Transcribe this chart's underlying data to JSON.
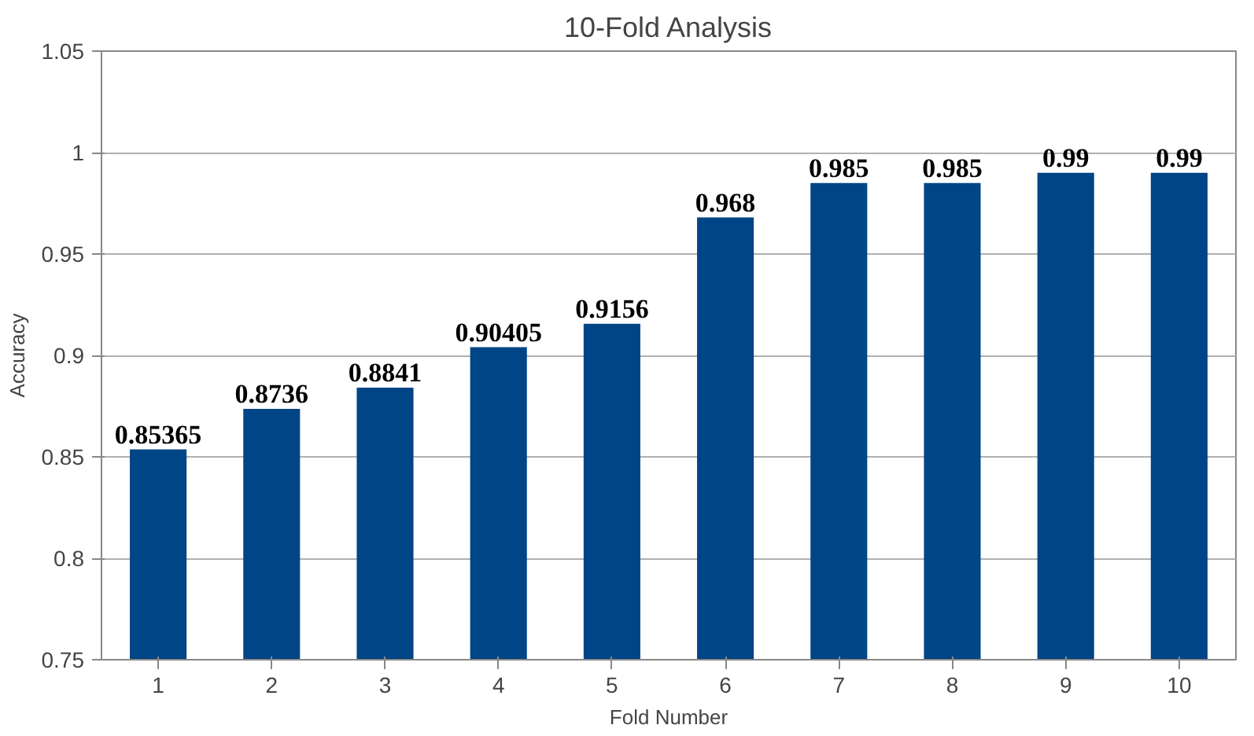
{
  "chart_data": {
    "type": "bar",
    "title": "10-Fold Analysis",
    "xlabel": "Fold Number",
    "ylabel": "Accuracy",
    "categories": [
      "1",
      "2",
      "3",
      "4",
      "5",
      "6",
      "7",
      "8",
      "9",
      "10"
    ],
    "values": [
      0.85365,
      0.8736,
      0.8841,
      0.90405,
      0.9156,
      0.968,
      0.985,
      0.985,
      0.99,
      0.99
    ],
    "color": "#004586",
    "ylim": [
      0.75,
      1.05
    ],
    "yticks": [
      0.75,
      0.8,
      0.85,
      0.9,
      0.95,
      1,
      1.05
    ],
    "grid": "y",
    "data_labels": true
  }
}
